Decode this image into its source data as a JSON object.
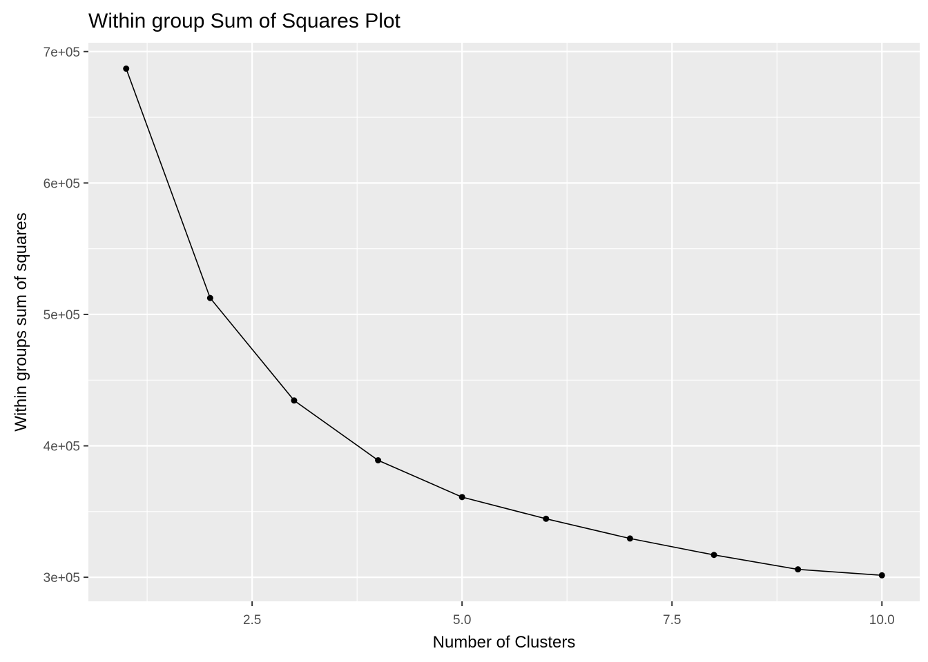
{
  "chart_data": {
    "type": "line",
    "title": "Within group Sum of Squares Plot",
    "xlabel": "Number of Clusters",
    "ylabel": "Within groups sum of squares",
    "x": [
      1,
      2,
      3,
      4,
      5,
      6,
      7,
      8,
      9,
      10
    ],
    "series": [
      {
        "values": [
          687000,
          512500,
          434500,
          389000,
          361000,
          344500,
          329500,
          317000,
          306000,
          301500
        ]
      }
    ],
    "xlim": [
      0.55,
      10.45
    ],
    "ylim": [
      281700,
      706700
    ],
    "x_ticks": [
      2.5,
      5.0,
      7.5,
      10.0
    ],
    "x_tick_labels": [
      "2.5",
      "5.0",
      "7.5",
      "10.0"
    ],
    "y_ticks": [
      300000,
      400000,
      500000,
      600000,
      700000
    ],
    "y_tick_labels": [
      "3e+05",
      "4e+05",
      "5e+05",
      "6e+05",
      "7e+05"
    ],
    "grid": true,
    "markers": true,
    "panel_background": "#EBEBEB",
    "grid_color": "#FFFFFF",
    "line_color": "#000000",
    "tick_label_color": "#4D4D4D"
  }
}
